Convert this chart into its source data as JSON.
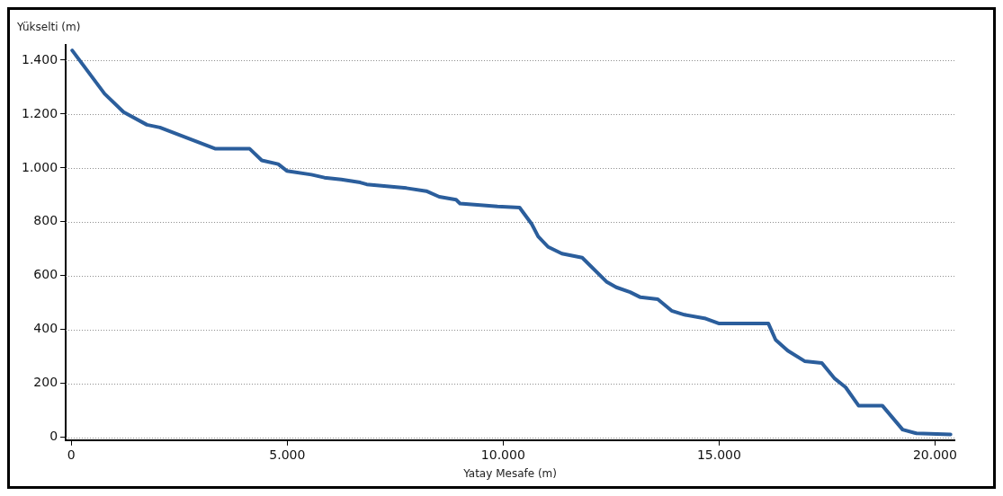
{
  "chart_data": {
    "type": "line",
    "xlabel": "Yatay Mesafe (m)",
    "ylabel": "Yükselti (m)",
    "x": [
      20,
      770,
      1210,
      1750,
      2050,
      2810,
      3340,
      4130,
      4410,
      4790,
      4990,
      5560,
      5860,
      6250,
      6690,
      6840,
      7760,
      8220,
      8520,
      8910,
      9000,
      9870,
      10380,
      10660,
      10810,
      11040,
      11360,
      11830,
      12390,
      12620,
      12940,
      13180,
      13580,
      13900,
      14200,
      14690,
      14990,
      16140,
      16310,
      16590,
      16980,
      17380,
      17680,
      17930,
      18230,
      18780,
      19250,
      19570,
      20360
    ],
    "series": [
      {
        "color": "#2b5e9c",
        "values": [
          1436,
          1275,
          1207,
          1160,
          1150,
          1103,
          1071,
          1071,
          1028,
          1014,
          989,
          975,
          964,
          957,
          946,
          939,
          925,
          914,
          893,
          882,
          868,
          857,
          853,
          792,
          746,
          707,
          682,
          667,
          578,
          557,
          539,
          520,
          513,
          470,
          455,
          441,
          423,
          423,
          362,
          322,
          283,
          276,
          218,
          186,
          118,
          118,
          29,
          15,
          11
        ]
      }
    ],
    "xlim": [
      -130,
      20450
    ],
    "ylim": [
      -10,
      1455
    ],
    "xticks": [
      {
        "value": 0,
        "label": "0"
      },
      {
        "value": 5000,
        "label": "5.000"
      },
      {
        "value": 10000,
        "label": "10.000"
      },
      {
        "value": 15000,
        "label": "15.000"
      },
      {
        "value": 20000,
        "label": "20.000"
      }
    ],
    "yticks": [
      {
        "value": 0,
        "label": "0"
      },
      {
        "value": 200,
        "label": "200"
      },
      {
        "value": 400,
        "label": "400"
      },
      {
        "value": 600,
        "label": "600"
      },
      {
        "value": 800,
        "label": "800"
      },
      {
        "value": 1000,
        "label": "1.000"
      },
      {
        "value": 1200,
        "label": "1.200"
      },
      {
        "value": 1400,
        "label": "1.400"
      }
    ],
    "grid": "y",
    "legend": false,
    "marker": "none",
    "line_style": "solid"
  }
}
